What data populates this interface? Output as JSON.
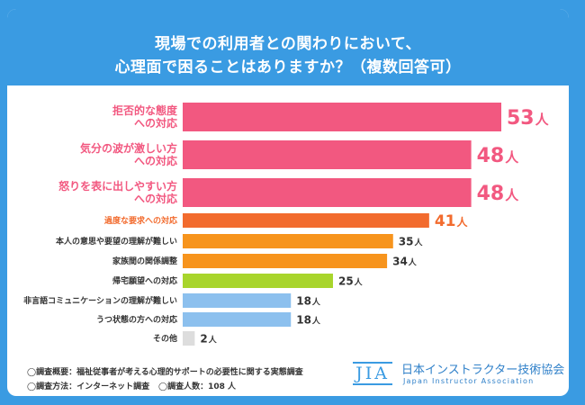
{
  "chart_data": {
    "type": "bar",
    "orientation": "horizontal",
    "title_lines": [
      "現場での利用者との関わりにおいて、",
      "心理面で困ることはありますか？（複数回答可）"
    ],
    "unit": "人",
    "categories": [
      [
        "拒否的な態度",
        "への対応"
      ],
      [
        "気分の波が激しい方",
        "への対応"
      ],
      [
        "怒りを表に出しやすい方",
        "への対応"
      ],
      [
        "過度な要求への対応"
      ],
      [
        "本人の意思や要望の理解が難しい"
      ],
      [
        "家族間の関係調整"
      ],
      [
        "帰宅願望への対応"
      ],
      [
        "非言語コミュニケーションの理解が難しい"
      ],
      [
        "うつ状態の方への対応"
      ],
      [
        "その他"
      ]
    ],
    "values": [
      53,
      48,
      48,
      41,
      35,
      34,
      25,
      18,
      18,
      2
    ],
    "bar_colors": [
      "#f25880",
      "#f25880",
      "#f25880",
      "#f26b2e",
      "#f7941d",
      "#f7941d",
      "#a8d52c",
      "#8cc0ee",
      "#8cc0ee",
      "#dddddd"
    ],
    "label_colors": [
      "#f25880",
      "#f25880",
      "#f25880",
      "#f26b2e",
      "#333333",
      "#333333",
      "#333333",
      "#333333",
      "#333333",
      "#333333"
    ],
    "xlim": [
      0,
      53
    ]
  },
  "footer": {
    "summary": "◯調査概要：福祉従事者が考える心理的サポートの必要性に関する実態調査",
    "method": "◯調査方法：インターネット調査",
    "count": "◯調査人数：108 人"
  },
  "logo": {
    "mark": "JIA",
    "name": "日本インストラクター技術協会",
    "english": "Japan Instructor Association"
  },
  "colors": {
    "brand_blue": "#3a9be2",
    "background": "#ffffff"
  }
}
